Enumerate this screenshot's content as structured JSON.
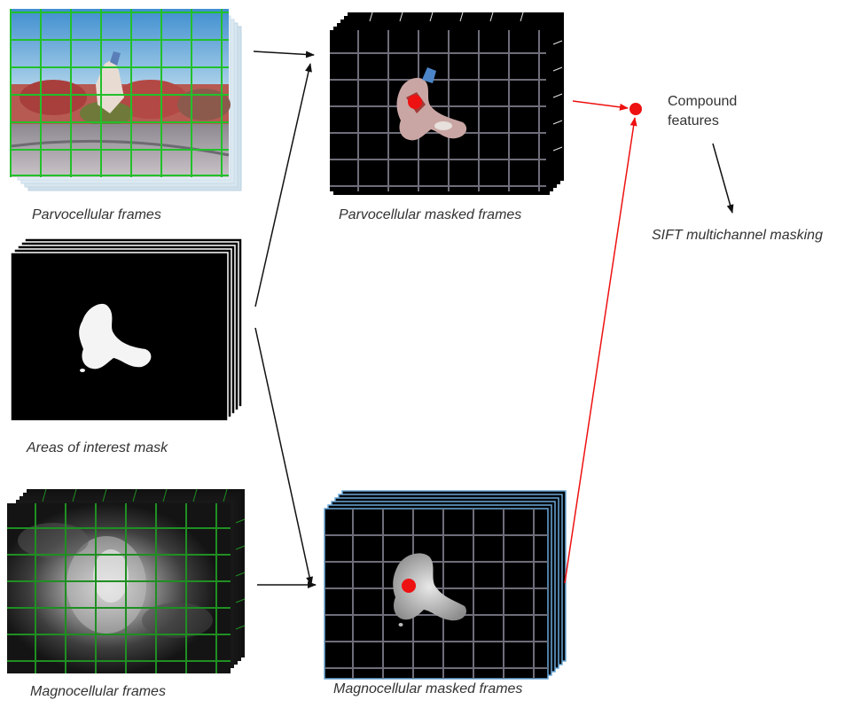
{
  "labels": {
    "parvo_frames": "Parvocellular frames",
    "parvo_masked": "Parvocellular masked frames",
    "aoi_mask": "Areas of interest mask",
    "magno_frames": "Magnocellular frames",
    "magno_masked": "Magnocellular masked frames",
    "compound_line1": "Compound",
    "compound_line2": "features",
    "sift": "SIFT multichannel masking"
  },
  "colors": {
    "grid_green": "#22c02a",
    "grid_dark_green": "#1f8f22",
    "grid_gray": "#6e6e7a",
    "feature_red": "#ee1111",
    "flow_black": "#111111",
    "frame_black": "#000000",
    "magno_border": "#6aa8d8"
  }
}
